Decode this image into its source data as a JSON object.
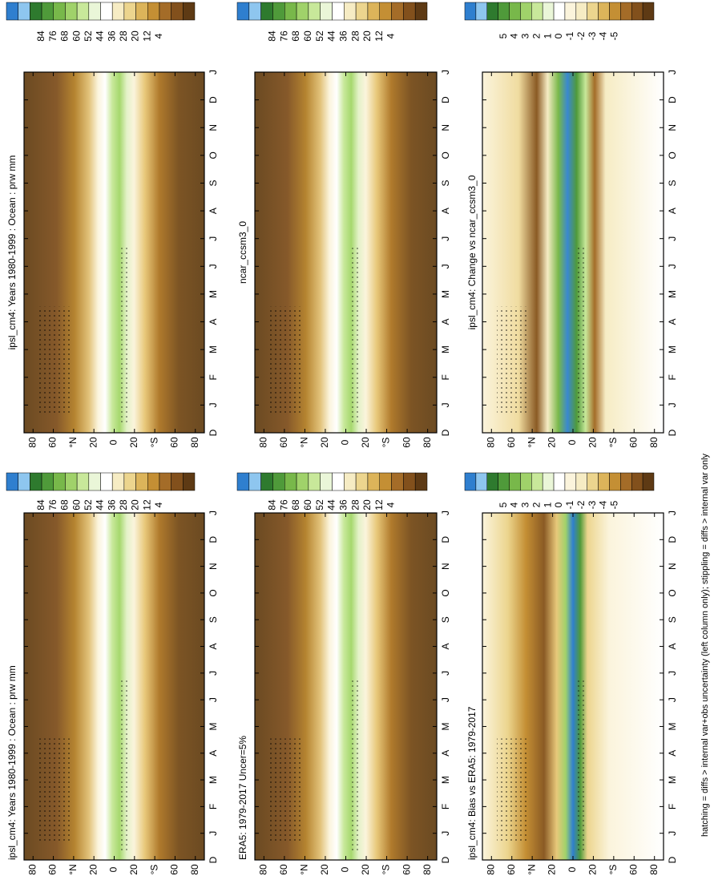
{
  "panels": [
    {
      "title": "ipsl_cm4: Years 1980-1999 : Ocean : prw mm",
      "lat_labels": [
        "80",
        "60",
        "°N",
        "20",
        "0",
        "20",
        "°S",
        "60",
        "80"
      ],
      "months": [
        "D",
        "J",
        "F",
        "M",
        "A",
        "M",
        "J",
        "J",
        "A",
        "S",
        "O",
        "N",
        "D",
        "J"
      ],
      "colorbar": [
        84,
        76,
        68,
        60,
        52,
        44,
        36,
        28,
        20,
        12,
        4
      ]
    },
    {
      "title": "ipsl_cm4: Years 1980-1999 : Ocean : prw mm",
      "lat_labels": [
        "80",
        "60",
        "°N",
        "20",
        "0",
        "20",
        "°S",
        "60",
        "80"
      ],
      "months": [
        "D",
        "J",
        "F",
        "M",
        "A",
        "M",
        "J",
        "J",
        "A",
        "S",
        "O",
        "N",
        "D",
        "J"
      ],
      "colorbar": [
        84,
        76,
        68,
        60,
        52,
        44,
        36,
        28,
        20,
        12,
        4
      ]
    },
    {
      "title": "ERA5: 1979-2017 Uncer=5%",
      "lat_labels": [
        "80",
        "60",
        "°N",
        "20",
        "0",
        "20",
        "°S",
        "60",
        "80"
      ],
      "months": [
        "D",
        "J",
        "F",
        "M",
        "A",
        "M",
        "J",
        "J",
        "A",
        "S",
        "O",
        "N",
        "D",
        "J"
      ],
      "colorbar": [
        84,
        76,
        68,
        60,
        52,
        44,
        36,
        28,
        20,
        12,
        4
      ]
    },
    {
      "title": "ncar_ccsm3_0",
      "lat_labels": [
        "80",
        "60",
        "°N",
        "20",
        "0",
        "20",
        "°S",
        "60",
        "80"
      ],
      "months": [
        "D",
        "J",
        "F",
        "M",
        "A",
        "M",
        "J",
        "J",
        "A",
        "S",
        "O",
        "N",
        "D",
        "J"
      ],
      "colorbar": [
        84,
        76,
        68,
        60,
        52,
        44,
        36,
        28,
        20,
        12,
        4
      ]
    },
    {
      "title": "ipsl_cm4: Bias vs ERA5: 1979-2017",
      "lat_labels": [
        "80",
        "60",
        "°N",
        "20",
        "0",
        "20",
        "°S",
        "60",
        "80"
      ],
      "months": [
        "D",
        "J",
        "F",
        "M",
        "A",
        "M",
        "J",
        "J",
        "A",
        "S",
        "O",
        "N",
        "D",
        "J"
      ],
      "colorbar": [
        5,
        4,
        3,
        2,
        1,
        0,
        -1,
        -2,
        -3,
        -4,
        -5
      ]
    },
    {
      "title": "ipsl_cm4: Change vs ncar_ccsm3_0",
      "lat_labels": [
        "80",
        "60",
        "°N",
        "20",
        "0",
        "20",
        "°S",
        "60",
        "80"
      ],
      "months": [
        "D",
        "J",
        "F",
        "M",
        "A",
        "M",
        "J",
        "J",
        "A",
        "S",
        "O",
        "N",
        "D",
        "J"
      ],
      "colorbar": [
        5,
        4,
        3,
        2,
        1,
        0,
        -1,
        -2,
        -3,
        -4,
        -5
      ]
    }
  ],
  "footnote": "hatching = diffs > internal var+obs uncertainty (left column only); stippling = diffs > internal var only"
}
